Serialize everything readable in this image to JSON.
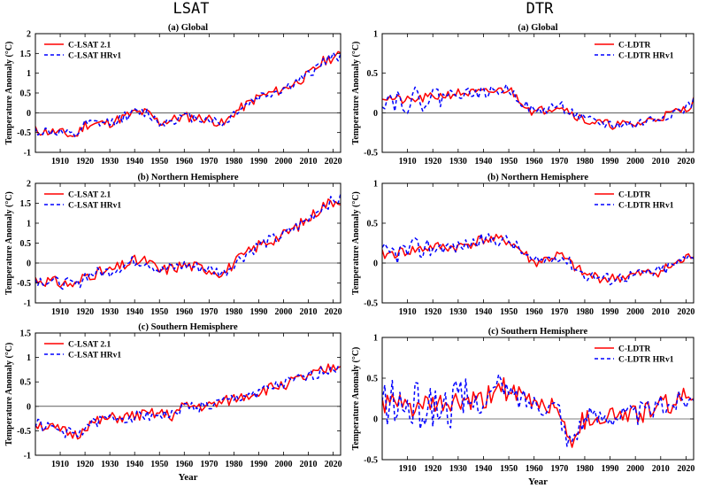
{
  "figure": {
    "column_titles": [
      "LSAT",
      "DTR"
    ],
    "x_axis_label": "Year"
  },
  "chart_data": [
    {
      "type": "line",
      "title": "(a) Global",
      "column": "LSAT",
      "xlabel": "",
      "ylabel": "Temperature Anomaly (°C)",
      "xlim": [
        1900,
        2023
      ],
      "ylim": [
        -1,
        2
      ],
      "xticks": [
        1910,
        1920,
        1930,
        1940,
        1950,
        1960,
        1970,
        1980,
        1990,
        2000,
        2010,
        2020
      ],
      "yticks": [
        -1,
        -0.5,
        0,
        0.5,
        1,
        1.5,
        2
      ],
      "ytick_labels": [
        "-1",
        "-0.5",
        "0",
        "0.5",
        "1",
        "1.5",
        "2"
      ],
      "legend_position": "top-left",
      "anchors": [
        [
          1900,
          -0.45
        ],
        [
          1910,
          -0.5
        ],
        [
          1916,
          -0.6
        ],
        [
          1920,
          -0.3
        ],
        [
          1930,
          -0.25
        ],
        [
          1940,
          0.0
        ],
        [
          1945,
          0.0
        ],
        [
          1950,
          -0.25
        ],
        [
          1960,
          -0.1
        ],
        [
          1970,
          -0.15
        ],
        [
          1976,
          -0.3
        ],
        [
          1980,
          0.0
        ],
        [
          1990,
          0.4
        ],
        [
          2000,
          0.6
        ],
        [
          2010,
          0.95
        ],
        [
          2016,
          1.3
        ],
        [
          2020,
          1.4
        ],
        [
          2023,
          1.45
        ]
      ],
      "series": [
        {
          "name": "C-LSAT 2.1",
          "color": "#ff0000",
          "style": "solid",
          "amp": 0.13,
          "seed": 11
        },
        {
          "name": "C-LSAT HRv1",
          "color": "#0000ff",
          "style": "dashed",
          "amp": 0.13,
          "seed": 12
        }
      ]
    },
    {
      "type": "line",
      "title": "(a) Global",
      "column": "DTR",
      "xlabel": "",
      "ylabel": "Temperature Anomaly (°C)",
      "xlim": [
        1900,
        2023
      ],
      "ylim": [
        -0.5,
        1
      ],
      "xticks": [
        1910,
        1920,
        1930,
        1940,
        1950,
        1960,
        1970,
        1980,
        1990,
        2000,
        2010,
        2020
      ],
      "yticks": [
        -0.5,
        0,
        0.5,
        1
      ],
      "ytick_labels": [
        "-0.5",
        "0",
        "0.5",
        "1"
      ],
      "legend_position": "top-right",
      "anchors": [
        [
          1900,
          0.2
        ],
        [
          1910,
          0.15
        ],
        [
          1920,
          0.2
        ],
        [
          1930,
          0.25
        ],
        [
          1940,
          0.25
        ],
        [
          1950,
          0.3
        ],
        [
          1955,
          0.15
        ],
        [
          1960,
          0.0
        ],
        [
          1970,
          0.1
        ],
        [
          1980,
          -0.1
        ],
        [
          1990,
          -0.15
        ],
        [
          2000,
          -0.15
        ],
        [
          2010,
          -0.05
        ],
        [
          2020,
          0.05
        ],
        [
          2023,
          0.15
        ]
      ],
      "series": [
        {
          "name": "C-LDTR",
          "color": "#ff0000",
          "style": "solid",
          "amp": 0.06,
          "seed": 21
        },
        {
          "name": "C-LDTR HRv1",
          "color": "#0000ff",
          "style": "dashed",
          "amp": 0.07,
          "seed": 22,
          "early_amp": 0.16,
          "early_end": 1925
        }
      ]
    },
    {
      "type": "line",
      "title": "(b) Northern Hemisphere",
      "column": "LSAT",
      "xlabel": "",
      "ylabel": "Temperature Anomaly (°C)",
      "xlim": [
        1900,
        2023
      ],
      "ylim": [
        -1,
        2
      ],
      "xticks": [
        1910,
        1920,
        1930,
        1940,
        1950,
        1960,
        1970,
        1980,
        1990,
        2000,
        2010,
        2020
      ],
      "yticks": [
        -1,
        -0.5,
        0,
        0.5,
        1,
        1.5,
        2
      ],
      "ytick_labels": [
        "-1",
        "-0.5",
        "0",
        "0.5",
        "1",
        "1.5",
        "2"
      ],
      "legend_position": "top-left",
      "anchors": [
        [
          1900,
          -0.4
        ],
        [
          1910,
          -0.5
        ],
        [
          1917,
          -0.55
        ],
        [
          1920,
          -0.3
        ],
        [
          1930,
          -0.2
        ],
        [
          1940,
          0.05
        ],
        [
          1945,
          0.05
        ],
        [
          1950,
          -0.2
        ],
        [
          1960,
          -0.05
        ],
        [
          1970,
          -0.15
        ],
        [
          1976,
          -0.25
        ],
        [
          1980,
          0.0
        ],
        [
          1990,
          0.45
        ],
        [
          2000,
          0.7
        ],
        [
          2010,
          1.1
        ],
        [
          2016,
          1.45
        ],
        [
          2020,
          1.55
        ],
        [
          2023,
          1.6
        ]
      ],
      "series": [
        {
          "name": "C-LSAT 2.1",
          "color": "#ff0000",
          "style": "solid",
          "amp": 0.15,
          "seed": 31
        },
        {
          "name": "C-LSAT HRv1",
          "color": "#0000ff",
          "style": "dashed",
          "amp": 0.15,
          "seed": 32
        }
      ]
    },
    {
      "type": "line",
      "title": "(b) Northern Hemisphere",
      "column": "DTR",
      "xlabel": "",
      "ylabel": "Temperature Anomaly (°C)",
      "xlim": [
        1900,
        2023
      ],
      "ylim": [
        -0.5,
        1
      ],
      "xticks": [
        1910,
        1920,
        1930,
        1940,
        1950,
        1960,
        1970,
        1980,
        1990,
        2000,
        2010,
        2020
      ],
      "yticks": [
        -0.5,
        0,
        0.5,
        1
      ],
      "ytick_labels": [
        "-0.5",
        "0",
        "0.5",
        "1"
      ],
      "legend_position": "top-right",
      "anchors": [
        [
          1900,
          0.1
        ],
        [
          1910,
          0.15
        ],
        [
          1920,
          0.2
        ],
        [
          1930,
          0.2
        ],
        [
          1940,
          0.3
        ],
        [
          1950,
          0.28
        ],
        [
          1955,
          0.15
        ],
        [
          1960,
          0.0
        ],
        [
          1970,
          0.1
        ],
        [
          1980,
          -0.15
        ],
        [
          1990,
          -0.2
        ],
        [
          2000,
          -0.15
        ],
        [
          2010,
          -0.1
        ],
        [
          2020,
          0.05
        ],
        [
          2023,
          0.12
        ]
      ],
      "series": [
        {
          "name": "C-LDTR",
          "color": "#ff0000",
          "style": "solid",
          "amp": 0.07,
          "seed": 41
        },
        {
          "name": "C-LDTR HRv1",
          "color": "#0000ff",
          "style": "dashed",
          "amp": 0.08,
          "seed": 42,
          "early_amp": 0.15,
          "early_end": 1922
        }
      ]
    },
    {
      "type": "line",
      "title": "(c) Southern Hemisphere",
      "column": "LSAT",
      "xlabel": "Year",
      "ylabel": "Temperature Anomaly (°C)",
      "xlim": [
        1900,
        2023
      ],
      "ylim": [
        -1,
        1.5
      ],
      "xticks": [
        1910,
        1920,
        1930,
        1940,
        1950,
        1960,
        1970,
        1980,
        1990,
        2000,
        2010,
        2020
      ],
      "yticks": [
        -1,
        -0.5,
        0,
        0.5,
        1,
        1.5
      ],
      "ytick_labels": [
        "-1",
        "-0.5",
        "0",
        "0.5",
        "1",
        "1.5"
      ],
      "legend_position": "top-left",
      "anchors": [
        [
          1900,
          -0.35
        ],
        [
          1910,
          -0.5
        ],
        [
          1917,
          -0.6
        ],
        [
          1920,
          -0.4
        ],
        [
          1930,
          -0.25
        ],
        [
          1940,
          -0.2
        ],
        [
          1950,
          -0.15
        ],
        [
          1955,
          -0.2
        ],
        [
          1960,
          0.0
        ],
        [
          1970,
          0.0
        ],
        [
          1980,
          0.15
        ],
        [
          1990,
          0.3
        ],
        [
          2000,
          0.45
        ],
        [
          2010,
          0.6
        ],
        [
          2020,
          0.8
        ],
        [
          2023,
          0.85
        ]
      ],
      "series": [
        {
          "name": "C-LSAT 2.1",
          "color": "#ff0000",
          "style": "solid",
          "amp": 0.12,
          "seed": 51
        },
        {
          "name": "C-LSAT HRv1",
          "color": "#0000ff",
          "style": "dashed",
          "amp": 0.12,
          "seed": 52
        }
      ]
    },
    {
      "type": "line",
      "title": "(c) Southern Hemisphere",
      "column": "DTR",
      "xlabel": "Year",
      "ylabel": "Temperature Anomaly (°C)",
      "xlim": [
        1900,
        2023
      ],
      "ylim": [
        -0.5,
        1
      ],
      "xticks": [
        1910,
        1920,
        1930,
        1940,
        1950,
        1960,
        1970,
        1980,
        1990,
        2000,
        2010,
        2020
      ],
      "yticks": [
        -0.5,
        0,
        0.5,
        1
      ],
      "ytick_labels": [
        "-0.5",
        "0",
        "0.5",
        "1"
      ],
      "legend_position": "top-right",
      "anchors": [
        [
          1900,
          0.2
        ],
        [
          1910,
          0.15
        ],
        [
          1920,
          0.15
        ],
        [
          1930,
          0.2
        ],
        [
          1940,
          0.2
        ],
        [
          1947,
          0.45
        ],
        [
          1950,
          0.3
        ],
        [
          1960,
          0.2
        ],
        [
          1970,
          0.15
        ],
        [
          1973,
          -0.3
        ],
        [
          1980,
          0.0
        ],
        [
          1990,
          0.05
        ],
        [
          2000,
          0.05
        ],
        [
          2010,
          0.15
        ],
        [
          2020,
          0.25
        ],
        [
          2023,
          0.25
        ]
      ],
      "series": [
        {
          "name": "C-LDTR",
          "color": "#ff0000",
          "style": "solid",
          "amp": 0.14,
          "seed": 61
        },
        {
          "name": "C-LDTR HRv1",
          "color": "#0000ff",
          "style": "dashed",
          "amp": 0.14,
          "seed": 62,
          "early_amp": 0.3,
          "early_end": 1935
        }
      ]
    }
  ]
}
